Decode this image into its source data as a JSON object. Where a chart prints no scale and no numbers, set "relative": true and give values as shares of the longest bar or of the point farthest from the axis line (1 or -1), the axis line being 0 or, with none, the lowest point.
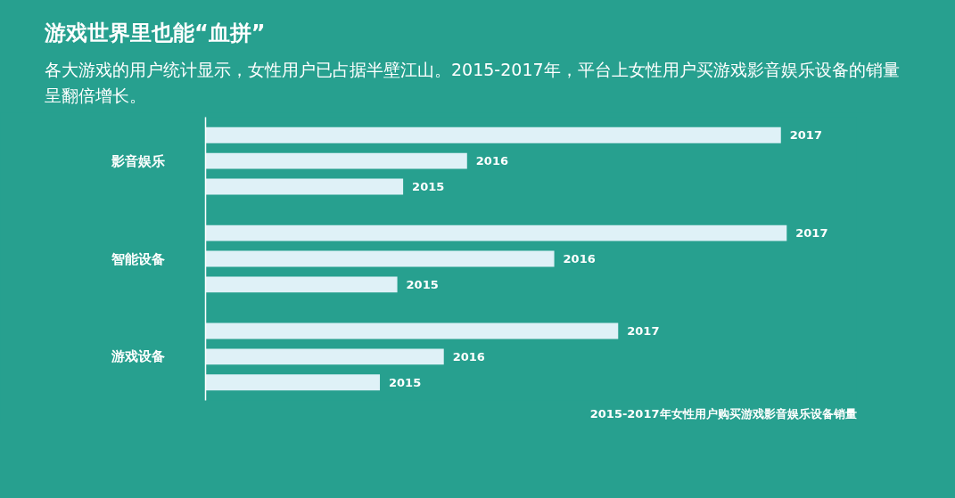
{
  "chart_data": {
    "type": "bar",
    "orientation": "horizontal",
    "relative": true,
    "title": "游戏世界里也能“血拼”",
    "subtitle": "各大游戏的用户统计显示，女性用户已占据半壁江山。2015-2017年，平台上女性用户买游戏影音娱乐设备的销量呈翻倍增长。",
    "categories": [
      "影音娱乐",
      "智能设备",
      "游戏设备"
    ],
    "series": [
      {
        "name": "2017",
        "color": "#dff1f7",
        "values": [
          0.99,
          1,
          0.71
        ]
      },
      {
        "name": "2016",
        "color": "#dff1f7",
        "values": [
          0.45,
          0.6,
          0.41
        ]
      },
      {
        "name": "2015",
        "color": "#dff1f7",
        "values": [
          0.34,
          0.33,
          0.3
        ]
      }
    ],
    "annotations": [
      "2015-2017年女性用户购买游戏影音娱乐设备销量"
    ],
    "grid": false
  }
}
